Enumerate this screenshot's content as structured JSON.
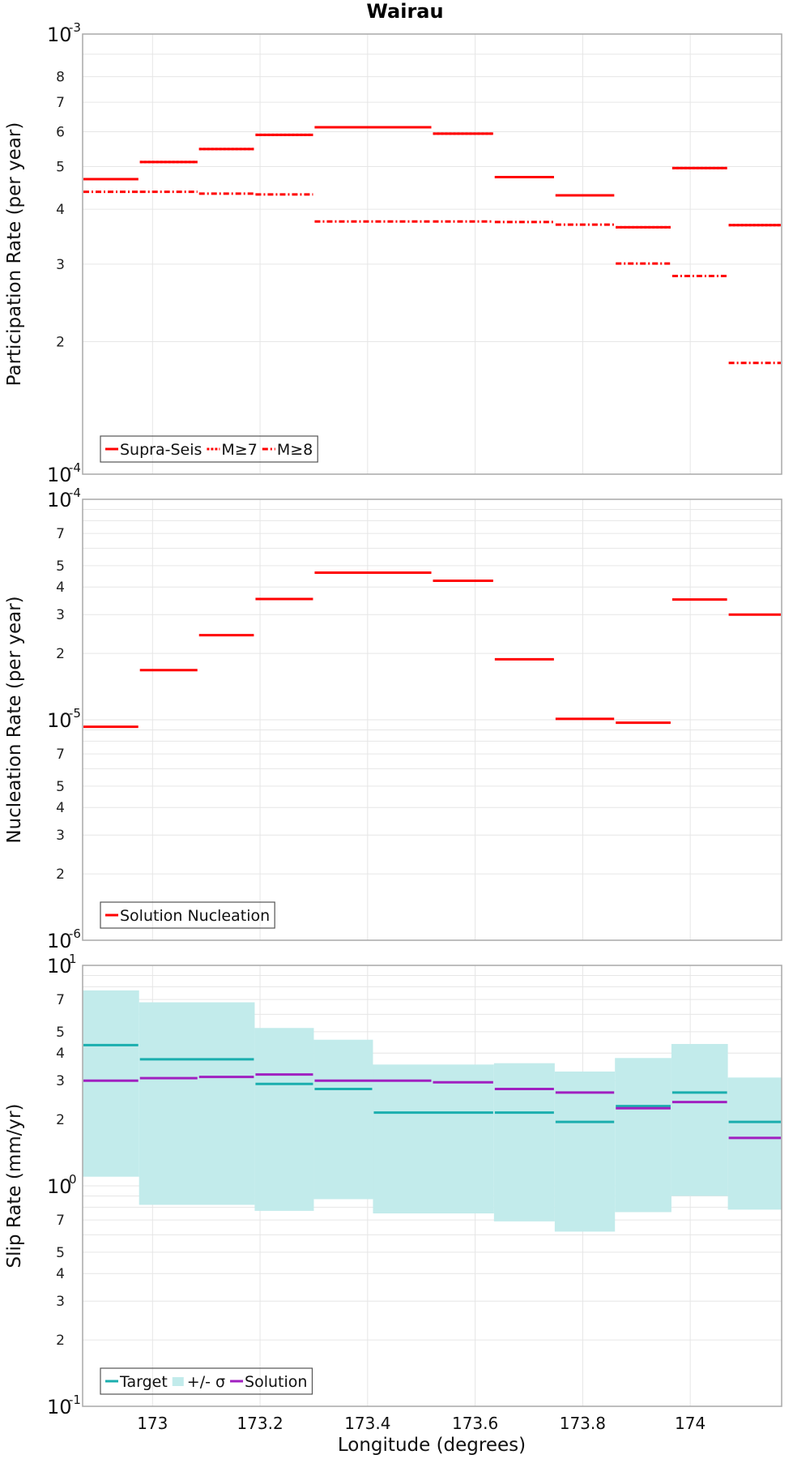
{
  "chart_data": {
    "title": "Wairau",
    "xlabel": "Longitude (degrees)",
    "xlim": [
      172.87,
      174.17
    ],
    "x_ticks": [
      {
        "value": 173.0,
        "label": "173"
      },
      {
        "value": 173.2,
        "label": "173.2"
      },
      {
        "value": 173.4,
        "label": "173.4"
      },
      {
        "value": 173.6,
        "label": "173.6"
      },
      {
        "value": 173.8,
        "label": "173.8"
      },
      {
        "value": 174.0,
        "label": "174"
      }
    ],
    "colors": {
      "red": "#ff0000",
      "target": "#1aaeae",
      "band": "#c2ebeb",
      "solution": "#a020c0",
      "grid": "#e6e6e6",
      "frame": "#a9a9a9"
    },
    "panels": [
      {
        "type": "step",
        "scale": "log",
        "ylabel": "Participation Rate (per year)",
        "ylim": [
          0.0001,
          0.001
        ],
        "decade_labels": [
          {
            "value": 0.0001,
            "base": "10",
            "exp": "-4"
          },
          {
            "value": 0.001,
            "base": "10",
            "exp": "-3"
          }
        ],
        "minor_labels": [
          {
            "value": 0.0002,
            "label": "2"
          },
          {
            "value": 0.0003,
            "label": "3"
          },
          {
            "value": 0.0004,
            "label": "4"
          },
          {
            "value": 0.0005,
            "label": "5"
          },
          {
            "value": 0.0006,
            "label": "6"
          },
          {
            "value": 0.0007,
            "label": "7"
          },
          {
            "value": 0.0008,
            "label": "8"
          }
        ],
        "legend": [
          {
            "name": "Supra-Seis",
            "style": "solid",
            "color": "#ff0000"
          },
          {
            "name": "M≥7",
            "style": "dotted",
            "color": "#ff0000"
          },
          {
            "name": "M≥8",
            "style": "dashdot",
            "color": "#ff0000"
          }
        ],
        "series": [
          {
            "name": "Supra-Seis",
            "style": "solid",
            "color": "#ff0000",
            "segments": [
              [
                172.87,
                172.975,
                0.000468
              ],
              [
                172.975,
                173.085,
                0.000512
              ],
              [
                173.085,
                173.19,
                0.000548
              ],
              [
                173.19,
                173.3,
                0.00059
              ],
              [
                173.3,
                173.52,
                0.000614
              ],
              [
                173.52,
                173.635,
                0.000594
              ],
              [
                173.635,
                173.748,
                0.000473
              ],
              [
                173.748,
                173.86,
                0.00043
              ],
              [
                173.86,
                173.965,
                0.000364
              ],
              [
                173.965,
                174.07,
                0.000496
              ],
              [
                174.07,
                174.17,
                0.000368
              ]
            ]
          },
          {
            "name": "M≥7",
            "style": "dotted",
            "color": "#ff0000",
            "segments": [
              [
                172.87,
                172.975,
                0.000468
              ],
              [
                172.975,
                173.085,
                0.000512
              ],
              [
                173.085,
                173.19,
                0.000548
              ],
              [
                173.19,
                173.3,
                0.00059
              ],
              [
                173.3,
                173.52,
                0.000614
              ],
              [
                173.52,
                173.635,
                0.000594
              ],
              [
                173.635,
                173.748,
                0.000473
              ],
              [
                173.748,
                173.86,
                0.00043
              ],
              [
                173.86,
                173.965,
                0.000364
              ],
              [
                173.965,
                174.07,
                0.000496
              ],
              [
                174.07,
                174.17,
                0.000368
              ]
            ]
          },
          {
            "name": "M≥8",
            "style": "dashdot",
            "color": "#ff0000",
            "segments": [
              [
                172.87,
                172.975,
                0.000438
              ],
              [
                172.975,
                173.085,
                0.000438
              ],
              [
                173.085,
                173.19,
                0.000434
              ],
              [
                173.19,
                173.3,
                0.000432
              ],
              [
                173.3,
                173.52,
                0.000375
              ],
              [
                173.52,
                173.635,
                0.000375
              ],
              [
                173.635,
                173.748,
                0.000374
              ],
              [
                173.748,
                173.86,
                0.000369
              ],
              [
                173.86,
                173.965,
                0.000301
              ],
              [
                173.965,
                174.07,
                0.000282
              ],
              [
                174.07,
                174.17,
                0.000179
              ]
            ]
          }
        ]
      },
      {
        "type": "step",
        "scale": "log",
        "ylabel": "Nucleation Rate (per year)",
        "ylim": [
          1e-06,
          0.0001
        ],
        "decade_labels": [
          {
            "value": 1e-06,
            "base": "10",
            "exp": "-6"
          },
          {
            "value": 1e-05,
            "base": "10",
            "exp": "-5"
          },
          {
            "value": 0.0001,
            "base": "10",
            "exp": "-4"
          }
        ],
        "minor_labels": [
          {
            "value": 2e-06,
            "label": "2"
          },
          {
            "value": 3e-06,
            "label": "3"
          },
          {
            "value": 4e-06,
            "label": "4"
          },
          {
            "value": 5e-06,
            "label": "5"
          },
          {
            "value": 7e-06,
            "label": "7"
          },
          {
            "value": 2e-05,
            "label": "2"
          },
          {
            "value": 3e-05,
            "label": "3"
          },
          {
            "value": 4e-05,
            "label": "4"
          },
          {
            "value": 5e-05,
            "label": "5"
          },
          {
            "value": 7e-05,
            "label": "7"
          }
        ],
        "legend": [
          {
            "name": "Solution Nucleation",
            "style": "solid",
            "color": "#ff0000"
          }
        ],
        "series": [
          {
            "name": "Solution Nucleation",
            "style": "solid",
            "color": "#ff0000",
            "segments": [
              [
                172.87,
                172.975,
                9.3e-06
              ],
              [
                172.975,
                173.085,
                1.68e-05
              ],
              [
                173.085,
                173.19,
                2.42e-05
              ],
              [
                173.19,
                173.3,
                3.53e-05
              ],
              [
                173.3,
                173.52,
                4.65e-05
              ],
              [
                173.52,
                173.635,
                4.27e-05
              ],
              [
                173.635,
                173.748,
                1.88e-05
              ],
              [
                173.748,
                173.86,
                1.01e-05
              ],
              [
                173.86,
                173.965,
                9.7e-06
              ],
              [
                173.965,
                174.07,
                3.51e-05
              ],
              [
                174.07,
                174.17,
                3e-05
              ]
            ]
          }
        ]
      },
      {
        "type": "step",
        "scale": "log",
        "ylabel": "Slip Rate (mm/yr)",
        "ylim": [
          0.1,
          10
        ],
        "decade_labels": [
          {
            "value": 0.1,
            "base": "10",
            "exp": "-1"
          },
          {
            "value": 1,
            "base": "10",
            "exp": "0"
          },
          {
            "value": 10,
            "base": "10",
            "exp": "1"
          }
        ],
        "minor_labels": [
          {
            "value": 0.2,
            "label": "2"
          },
          {
            "value": 0.3,
            "label": "3"
          },
          {
            "value": 0.4,
            "label": "4"
          },
          {
            "value": 0.5,
            "label": "5"
          },
          {
            "value": 0.7,
            "label": "7"
          },
          {
            "value": 2,
            "label": "2"
          },
          {
            "value": 3,
            "label": "3"
          },
          {
            "value": 4,
            "label": "4"
          },
          {
            "value": 5,
            "label": "5"
          },
          {
            "value": 7,
            "label": "7"
          }
        ],
        "legend": [
          {
            "name": "Target",
            "style": "solid",
            "color": "#1aaeae"
          },
          {
            "name": "+/- σ",
            "style": "band",
            "color": "#c2ebeb"
          },
          {
            "name": "Solution",
            "style": "solid",
            "color": "#a020c0"
          }
        ],
        "band": {
          "name": "+/- σ",
          "color": "#c2ebeb",
          "segments": [
            [
              172.87,
              172.975,
              1.1,
              7.7
            ],
            [
              172.975,
              173.19,
              0.82,
              6.8
            ],
            [
              173.19,
              173.3,
              0.77,
              5.2
            ],
            [
              173.3,
              173.41,
              0.87,
              4.6
            ],
            [
              173.41,
              173.635,
              0.75,
              3.55
            ],
            [
              173.635,
              173.748,
              0.69,
              3.6
            ],
            [
              173.748,
              173.86,
              0.62,
              3.3
            ],
            [
              173.86,
              173.965,
              0.76,
              3.8
            ],
            [
              173.965,
              174.07,
              0.9,
              4.4
            ],
            [
              174.07,
              174.17,
              0.78,
              3.1
            ]
          ]
        },
        "series": [
          {
            "name": "Target",
            "style": "solid",
            "color": "#1aaeae",
            "segments": [
              [
                172.87,
                172.975,
                4.35
              ],
              [
                172.975,
                173.19,
                3.75
              ],
              [
                173.19,
                173.3,
                2.9
              ],
              [
                173.3,
                173.41,
                2.75
              ],
              [
                173.41,
                173.635,
                2.15
              ],
              [
                173.635,
                173.748,
                2.15
              ],
              [
                173.748,
                173.86,
                1.95
              ],
              [
                173.86,
                173.965,
                2.3
              ],
              [
                173.965,
                174.07,
                2.65
              ],
              [
                174.07,
                174.17,
                1.95
              ]
            ]
          },
          {
            "name": "Solution",
            "style": "solid",
            "color": "#a020c0",
            "segments": [
              [
                172.87,
                172.975,
                3.0
              ],
              [
                172.975,
                173.085,
                3.08
              ],
              [
                173.085,
                173.19,
                3.12
              ],
              [
                173.19,
                173.3,
                3.2
              ],
              [
                173.3,
                173.52,
                3.0
              ],
              [
                173.52,
                173.635,
                2.95
              ],
              [
                173.635,
                173.748,
                2.75
              ],
              [
                173.748,
                173.86,
                2.65
              ],
              [
                173.86,
                173.965,
                2.25
              ],
              [
                173.965,
                174.07,
                2.4
              ],
              [
                174.07,
                174.17,
                1.65
              ]
            ]
          }
        ]
      }
    ]
  }
}
